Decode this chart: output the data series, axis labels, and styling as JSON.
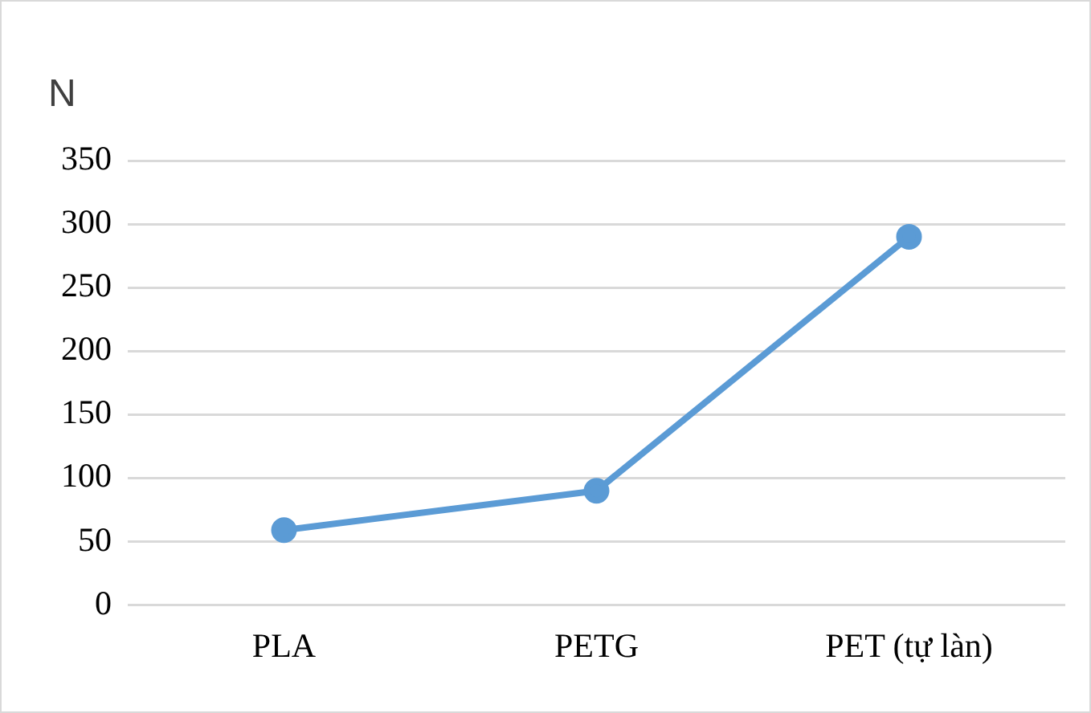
{
  "chart_data": {
    "type": "line",
    "ylabel": "N",
    "categories": [
      "PLA",
      "PETG",
      "PET (tự làn)"
    ],
    "series": [
      {
        "color": "#5b9bd5",
        "values": [
          59,
          90,
          290
        ]
      }
    ],
    "ylim": [
      0,
      350
    ],
    "yticks": [
      0,
      50,
      100,
      150,
      200,
      250,
      300,
      350
    ],
    "grid": "y",
    "legend": false,
    "marker": "circle",
    "line_style": "solid"
  }
}
